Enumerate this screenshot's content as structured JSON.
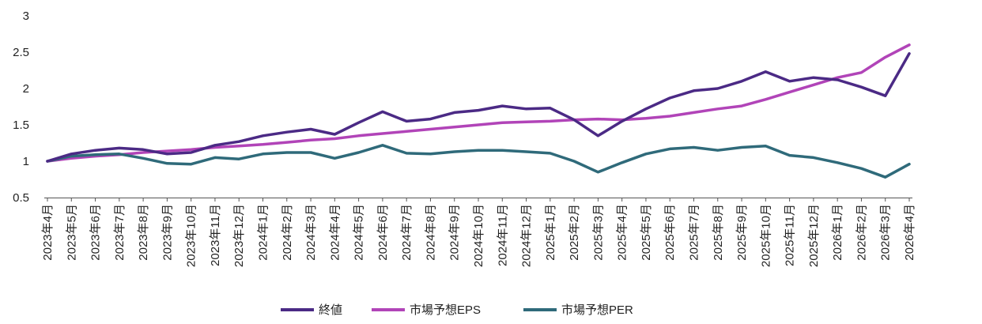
{
  "chart_data": {
    "type": "line",
    "title": "",
    "xlabel": "",
    "ylabel": "",
    "ylim": [
      0.5,
      3
    ],
    "yticks": [
      "0.5",
      "1",
      "1.5",
      "2",
      "2.5",
      "3"
    ],
    "grid": false,
    "legend_position": "bottom",
    "categories": [
      "2023年4月",
      "2023年5月",
      "2023年6月",
      "2023年7月",
      "2023年8月",
      "2023年9月",
      "2023年10月",
      "2023年11月",
      "2023年12月",
      "2024年1月",
      "2024年2月",
      "2024年3月",
      "2024年4月",
      "2024年5月",
      "2024年6月",
      "2024年7月",
      "2024年8月",
      "2024年9月",
      "2024年10月",
      "2024年11月",
      "2024年12月",
      "2025年1月",
      "2025年2月",
      "2025年3月",
      "2025年4月",
      "2025年5月",
      "2025年6月",
      "2025年7月",
      "2025年8月",
      "2025年9月",
      "2025年10月",
      "2025年11月",
      "2025年12月",
      "2026年1月",
      "2026年2月",
      "2026年3月",
      "2026年4月"
    ],
    "series": [
      {
        "name": "終値",
        "color": "#4b2a85",
        "values": [
          1.0,
          1.1,
          1.15,
          1.18,
          1.16,
          1.1,
          1.12,
          1.22,
          1.27,
          1.35,
          1.4,
          1.44,
          1.37,
          1.53,
          1.68,
          1.55,
          1.58,
          1.67,
          1.7,
          1.76,
          1.72,
          1.73,
          1.57,
          1.35,
          1.55,
          1.72,
          1.87,
          1.97,
          2.0,
          2.1,
          2.23,
          2.1,
          2.15,
          2.12,
          2.02,
          1.9,
          2.48
        ]
      },
      {
        "name": "市場予想EPS",
        "color": "#b144b8",
        "values": [
          1.0,
          1.04,
          1.07,
          1.09,
          1.12,
          1.14,
          1.16,
          1.19,
          1.21,
          1.23,
          1.26,
          1.29,
          1.31,
          1.35,
          1.38,
          1.41,
          1.44,
          1.47,
          1.5,
          1.53,
          1.54,
          1.55,
          1.57,
          1.58,
          1.57,
          1.59,
          1.62,
          1.67,
          1.72,
          1.76,
          1.85,
          1.95,
          2.05,
          2.15,
          2.22,
          2.43,
          2.6
        ]
      },
      {
        "name": "市場予想PER",
        "color": "#2f6a7a",
        "values": [
          1.0,
          1.07,
          1.09,
          1.1,
          1.04,
          0.97,
          0.96,
          1.05,
          1.03,
          1.1,
          1.12,
          1.12,
          1.04,
          1.12,
          1.22,
          1.11,
          1.1,
          1.13,
          1.15,
          1.15,
          1.13,
          1.11,
          1.0,
          0.85,
          0.98,
          1.1,
          1.17,
          1.19,
          1.15,
          1.19,
          1.21,
          1.08,
          1.05,
          0.98,
          0.9,
          0.78,
          0.96
        ]
      }
    ]
  }
}
